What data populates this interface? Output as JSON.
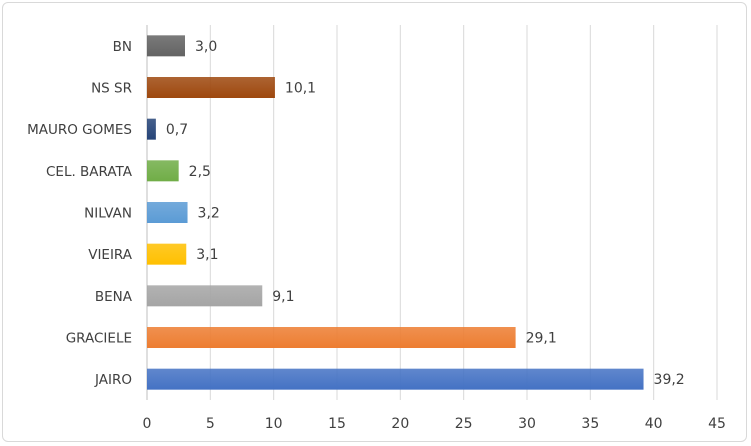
{
  "chart_data": {
    "type": "bar",
    "orientation": "horizontal",
    "categories": [
      "JAIRO",
      "GRACIELE",
      "BENA",
      "VIEIRA",
      "NILVAN",
      "CEL. BARATA",
      "MAURO GOMES",
      "NS SR",
      "BN"
    ],
    "values": [
      39.2,
      29.1,
      9.1,
      3.1,
      3.2,
      2.5,
      0.7,
      10.1,
      3.0
    ],
    "data_labels": [
      "39,2",
      "29,1",
      "9,1",
      "3,1",
      "3,2",
      "2,5",
      "0,7",
      "10,1",
      "3,0"
    ],
    "colors": [
      "#4472c4",
      "#ed7d31",
      "#a5a5a5",
      "#ffc000",
      "#5b9bd5",
      "#70ad47",
      "#264478",
      "#9e480e",
      "#636363"
    ],
    "xlim": [
      0,
      45
    ],
    "xticks": [
      0,
      5,
      10,
      15,
      20,
      25,
      30,
      35,
      40,
      45
    ],
    "title": "",
    "xlabel": "",
    "ylabel": "",
    "grid": "vertical",
    "legend": "none"
  }
}
